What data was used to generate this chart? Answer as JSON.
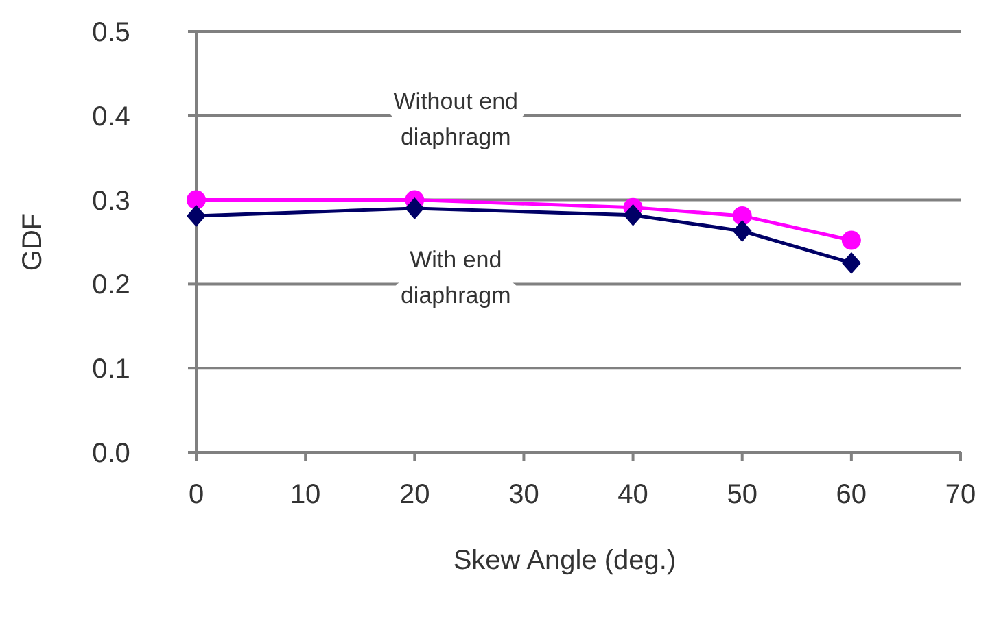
{
  "chart_data": {
    "type": "line",
    "xlabel": "Skew Angle (deg.)",
    "ylabel": "GDF",
    "x": [
      0,
      20,
      40,
      50,
      60
    ],
    "series": [
      {
        "color": "#ff00ff",
        "marker": "circle",
        "values": [
          0.3,
          0.3,
          0.291,
          0.281,
          0.252
        ]
      },
      {
        "color": "#000066",
        "marker": "diamond",
        "values": [
          0.281,
          0.29,
          0.282,
          0.263,
          0.225
        ]
      }
    ],
    "annotations": [
      "Without end\ndiaphragm",
      "With end\ndiaphragm"
    ],
    "xlim": [
      0,
      70
    ],
    "xticks": [
      0,
      10,
      20,
      30,
      40,
      50,
      60,
      70
    ],
    "ylim": [
      0,
      0.5
    ],
    "yticks": [
      {
        "value": 0,
        "label": "0.0"
      },
      {
        "value": 0.1,
        "label": "0.1"
      },
      {
        "value": 0.2,
        "label": "0.2"
      },
      {
        "value": 0.3,
        "label": "0.3"
      },
      {
        "value": 0.4,
        "label": "0.4"
      },
      {
        "value": 0.5,
        "label": "0.5"
      }
    ],
    "grid": "y"
  }
}
